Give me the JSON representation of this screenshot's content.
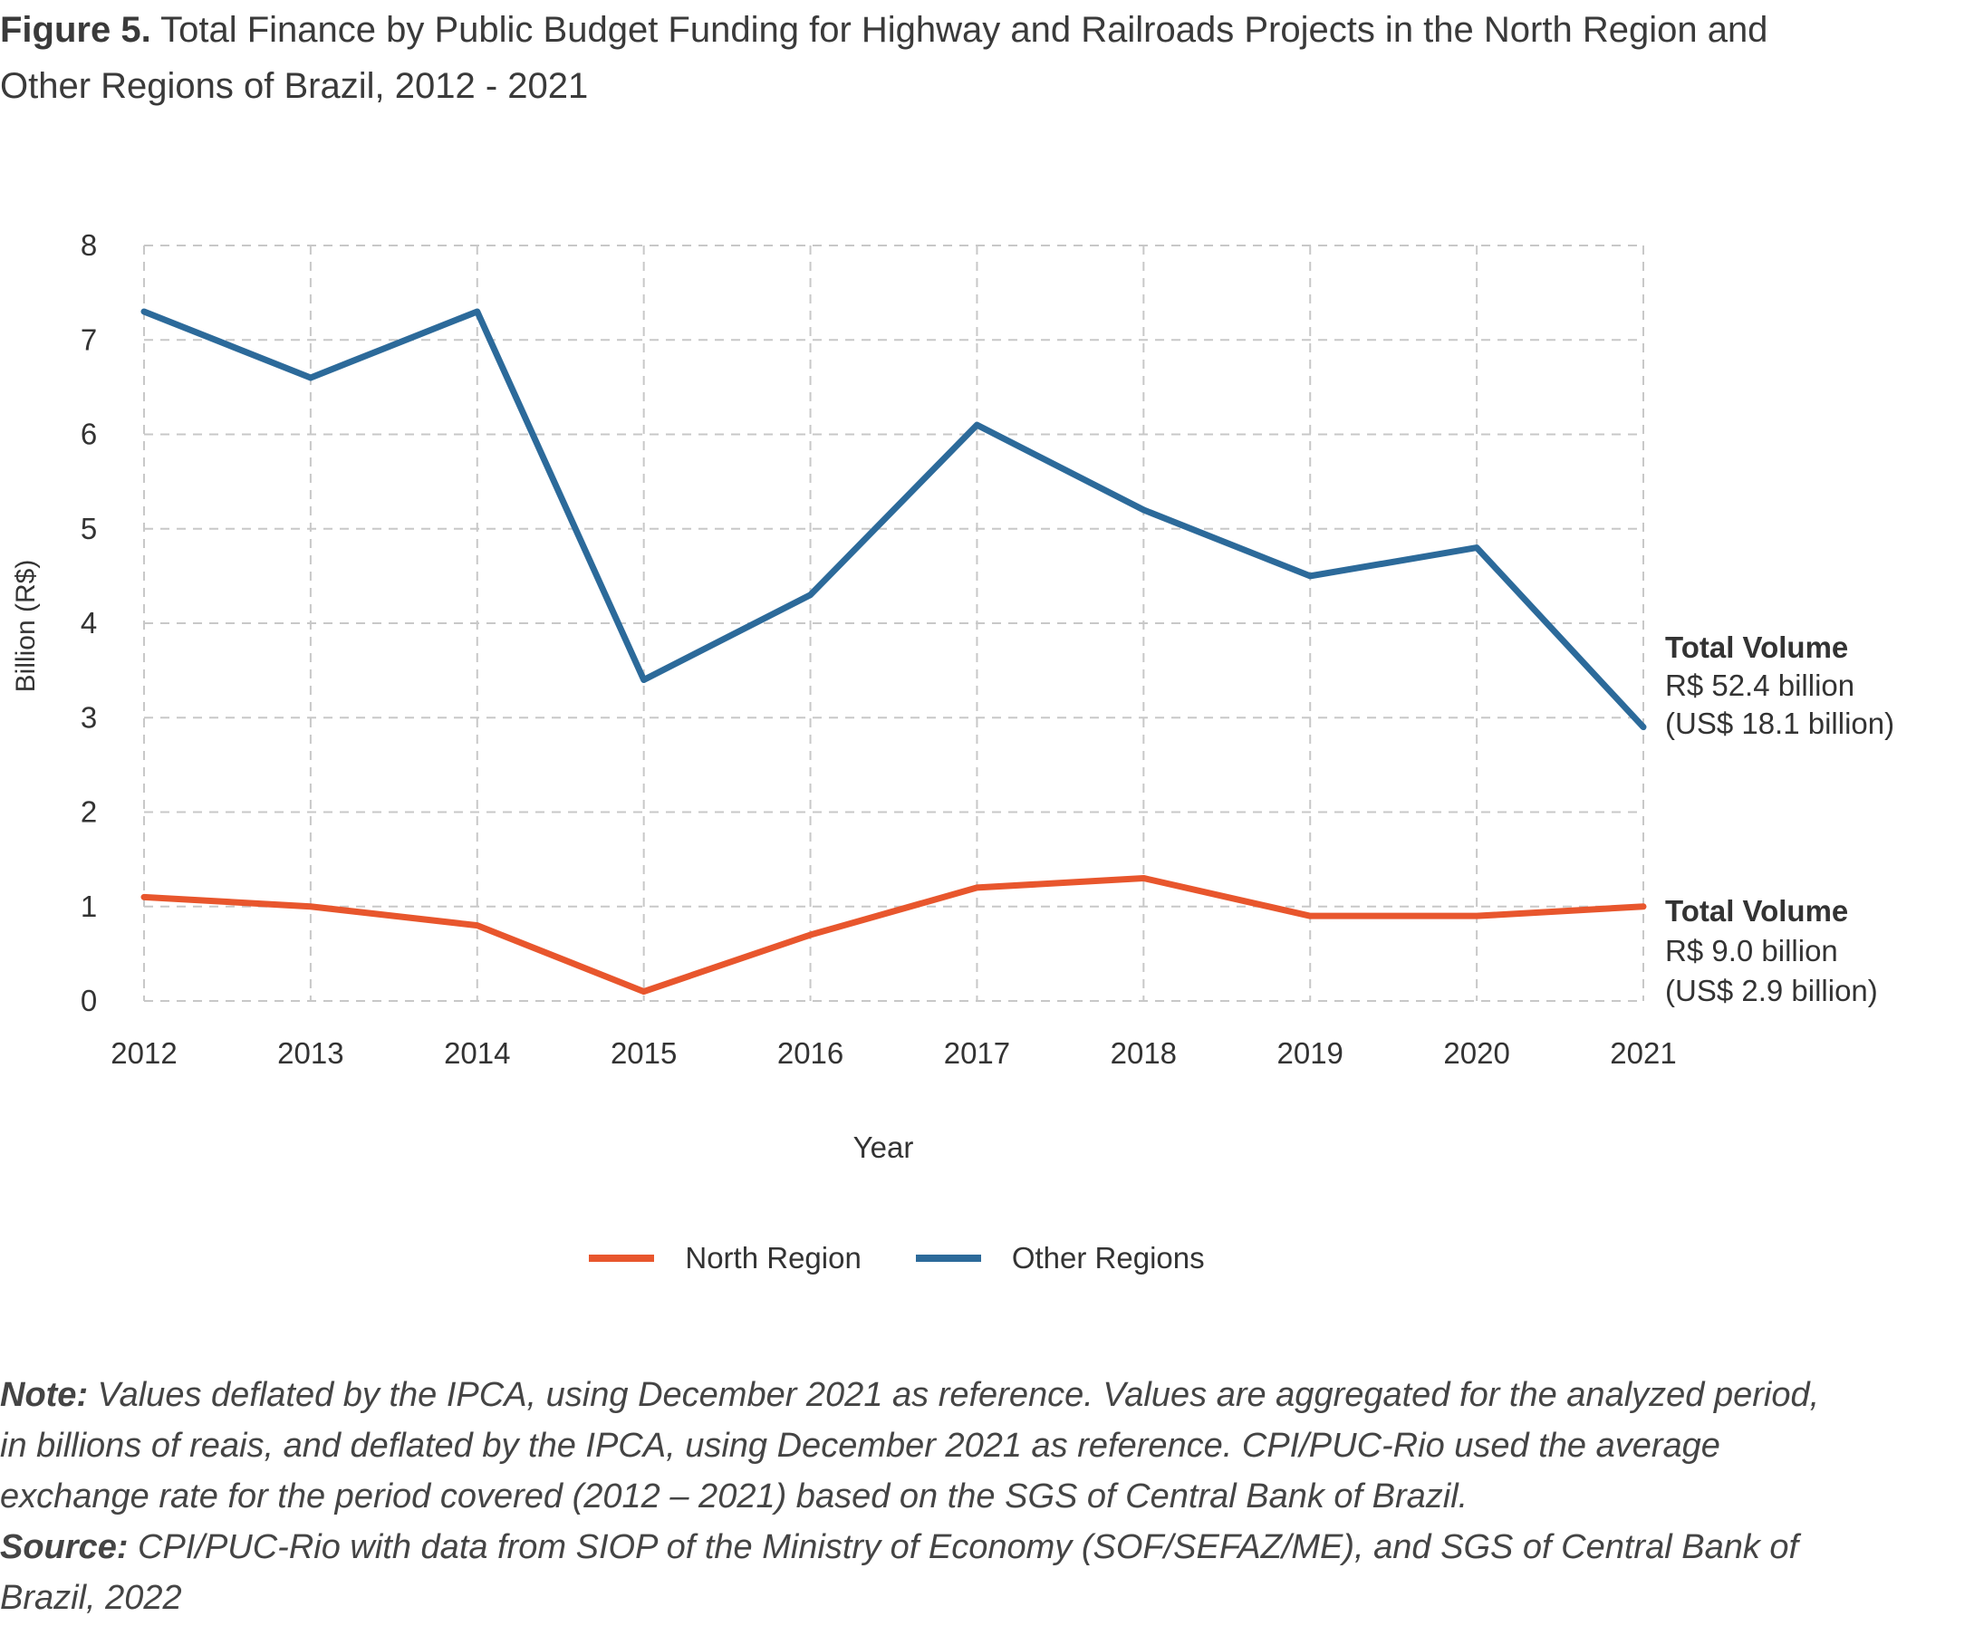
{
  "title": {
    "label": "Figure 5.",
    "text": "Total Finance by Public Budget Funding for Highway and Railroads Projects in the North Region and Other Regions of Brazil, 2012 - 2021"
  },
  "chart_data": {
    "type": "line",
    "x": [
      "2012",
      "2013",
      "2014",
      "2015",
      "2016",
      "2017",
      "2018",
      "2019",
      "2020",
      "2021"
    ],
    "xlabel": "Year",
    "ylabel": "Billion (R$)",
    "ylim": [
      0,
      8
    ],
    "yticks": [
      0,
      1,
      2,
      3,
      4,
      5,
      6,
      7,
      8
    ],
    "grid": true,
    "legend_position": "bottom-center",
    "series": [
      {
        "name": "North Region",
        "color": "#e8562d",
        "values": [
          1.1,
          1.0,
          0.8,
          0.1,
          0.7,
          1.2,
          1.3,
          0.9,
          0.9,
          1.0
        ],
        "annotation": [
          "Total Volume",
          "R$ 9.0 billion",
          "(US$ 2.9 billion)"
        ]
      },
      {
        "name": "Other Regions",
        "color": "#2c6a9a",
        "values": [
          7.3,
          6.6,
          7.3,
          3.4,
          4.3,
          6.1,
          5.2,
          4.5,
          4.8,
          2.9
        ],
        "annotation": [
          "Total Volume",
          "R$ 52.4 billion",
          "(US$ 18.1 billion)"
        ]
      }
    ]
  },
  "notes": {
    "note_label": "Note:",
    "note_text": "Values deflated by the IPCA, using December 2021 as reference. Values are aggregated for the analyzed period, in billions of reais, and deflated by the IPCA, using December 2021 as reference. CPI/PUC-Rio used the average exchange rate for the period covered (2012 – 2021) based on the SGS of Central Bank of Brazil.",
    "source_label": "Source:",
    "source_text": "CPI/PUC-Rio with data from SIOP of the Ministry of Economy (SOF/SEFAZ/ME), and SGS of Central Bank of Brazil, 2022"
  }
}
